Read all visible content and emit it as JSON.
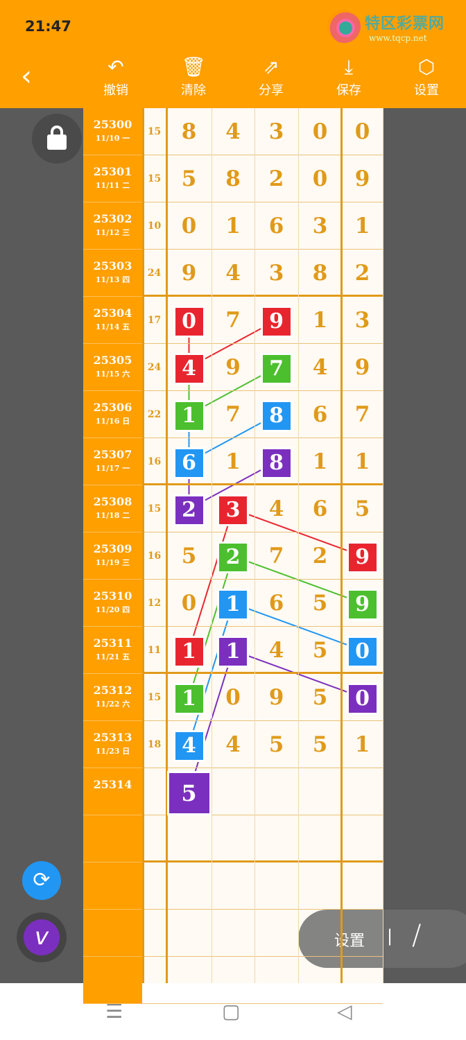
{
  "status": {
    "time": "21:47"
  },
  "watermark": {
    "name": "特区彩票网",
    "url": "www.tqcp.net"
  },
  "toolbar": [
    {
      "icon": "undo-icon",
      "glyph": "↶",
      "label": "撤销"
    },
    {
      "icon": "trash-icon",
      "glyph": "🗑",
      "label": "清除"
    },
    {
      "icon": "share-icon",
      "glyph": "⇗",
      "label": "分享"
    },
    {
      "icon": "download-icon",
      "glyph": "⤓",
      "label": "保存"
    },
    {
      "icon": "settings-icon",
      "glyph": "⬡",
      "label": "设置"
    }
  ],
  "colors": {
    "red": "#e8252f",
    "green": "#4cbf2e",
    "blue": "#2196f3",
    "purple": "#7b2fbe",
    "orange": "#ff9f00"
  },
  "rows": [
    {
      "period": "25300",
      "date": "11/10 一",
      "sum": "15",
      "digits": [
        8,
        4,
        3,
        0,
        0
      ]
    },
    {
      "period": "25301",
      "date": "11/11 二",
      "sum": "15",
      "digits": [
        5,
        8,
        2,
        0,
        9
      ]
    },
    {
      "period": "25302",
      "date": "11/12 三",
      "sum": "10",
      "digits": [
        0,
        1,
        6,
        3,
        1
      ]
    },
    {
      "period": "25303",
      "date": "11/13 四",
      "sum": "24",
      "digits": [
        9,
        4,
        3,
        8,
        2
      ]
    },
    {
      "period": "25304",
      "date": "11/14 五",
      "sum": "17",
      "digits": [
        0,
        7,
        9,
        1,
        3
      ]
    },
    {
      "period": "25305",
      "date": "11/15 六",
      "sum": "24",
      "digits": [
        4,
        9,
        7,
        4,
        9
      ]
    },
    {
      "period": "25306",
      "date": "11/16 日",
      "sum": "22",
      "digits": [
        1,
        7,
        8,
        6,
        7
      ]
    },
    {
      "period": "25307",
      "date": "11/17 一",
      "sum": "16",
      "digits": [
        6,
        1,
        8,
        1,
        1
      ]
    },
    {
      "period": "25308",
      "date": "11/18 二",
      "sum": "15",
      "digits": [
        2,
        3,
        4,
        6,
        5
      ]
    },
    {
      "period": "25309",
      "date": "11/19 三",
      "sum": "16",
      "digits": [
        5,
        2,
        7,
        2,
        9
      ]
    },
    {
      "period": "25310",
      "date": "11/20 四",
      "sum": "12",
      "digits": [
        0,
        1,
        6,
        5,
        9
      ]
    },
    {
      "period": "25311",
      "date": "11/21 五",
      "sum": "11",
      "digits": [
        1,
        1,
        4,
        5,
        0
      ]
    },
    {
      "period": "25312",
      "date": "11/22 六",
      "sum": "15",
      "digits": [
        1,
        0,
        9,
        5,
        0
      ]
    },
    {
      "period": "25313",
      "date": "11/23 日",
      "sum": "18",
      "digits": [
        4,
        4,
        5,
        5,
        1
      ]
    },
    {
      "period": "25314",
      "date": "",
      "sum": "",
      "digits": [
        5,
        null,
        null,
        null,
        null
      ]
    }
  ],
  "highlights": [
    {
      "row": 4,
      "col": 0,
      "color": "red"
    },
    {
      "row": 4,
      "col": 2,
      "color": "red"
    },
    {
      "row": 5,
      "col": 0,
      "color": "red"
    },
    {
      "row": 5,
      "col": 2,
      "color": "green"
    },
    {
      "row": 6,
      "col": 0,
      "color": "green"
    },
    {
      "row": 6,
      "col": 2,
      "color": "blue"
    },
    {
      "row": 7,
      "col": 0,
      "color": "blue"
    },
    {
      "row": 7,
      "col": 2,
      "color": "purple"
    },
    {
      "row": 8,
      "col": 0,
      "color": "purple"
    },
    {
      "row": 8,
      "col": 1,
      "color": "red"
    },
    {
      "row": 9,
      "col": 1,
      "color": "green"
    },
    {
      "row": 9,
      "col": 4,
      "color": "red"
    },
    {
      "row": 10,
      "col": 1,
      "color": "blue"
    },
    {
      "row": 10,
      "col": 4,
      "color": "green"
    },
    {
      "row": 11,
      "col": 0,
      "color": "red"
    },
    {
      "row": 11,
      "col": 1,
      "color": "purple"
    },
    {
      "row": 11,
      "col": 4,
      "color": "blue"
    },
    {
      "row": 12,
      "col": 0,
      "color": "green"
    },
    {
      "row": 12,
      "col": 4,
      "color": "purple"
    },
    {
      "row": 13,
      "col": 0,
      "color": "blue"
    },
    {
      "row": 14,
      "col": 0,
      "color": "purple"
    }
  ],
  "links": [
    {
      "from": [
        4,
        0
      ],
      "to": [
        5,
        0
      ],
      "color": "red"
    },
    {
      "from": [
        4,
        2
      ],
      "to": [
        5,
        0
      ],
      "color": "red"
    },
    {
      "from": [
        5,
        0
      ],
      "to": [
        6,
        0
      ],
      "color": "green"
    },
    {
      "from": [
        5,
        2
      ],
      "to": [
        6,
        0
      ],
      "color": "green"
    },
    {
      "from": [
        6,
        0
      ],
      "to": [
        7,
        0
      ],
      "color": "blue"
    },
    {
      "from": [
        6,
        2
      ],
      "to": [
        7,
        0
      ],
      "color": "blue"
    },
    {
      "from": [
        7,
        0
      ],
      "to": [
        8,
        0
      ],
      "color": "purple"
    },
    {
      "from": [
        7,
        2
      ],
      "to": [
        8,
        0
      ],
      "color": "purple"
    },
    {
      "from": [
        8,
        1
      ],
      "to": [
        9,
        4
      ],
      "color": "red"
    },
    {
      "from": [
        8,
        1
      ],
      "to": [
        11,
        0
      ],
      "color": "red"
    },
    {
      "from": [
        9,
        1
      ],
      "to": [
        10,
        4
      ],
      "color": "green"
    },
    {
      "from": [
        9,
        1
      ],
      "to": [
        12,
        0
      ],
      "color": "green"
    },
    {
      "from": [
        10,
        1
      ],
      "to": [
        11,
        4
      ],
      "color": "blue"
    },
    {
      "from": [
        10,
        1
      ],
      "to": [
        13,
        0
      ],
      "color": "blue"
    },
    {
      "from": [
        11,
        1
      ],
      "to": [
        12,
        4
      ],
      "color": "purple"
    },
    {
      "from": [
        11,
        1
      ],
      "to": [
        14,
        0
      ],
      "color": "purple"
    }
  ],
  "settings_pill": {
    "label": "设置",
    "divider": "|",
    "pen_glyph": "/"
  },
  "nav": {
    "menu": "☰",
    "home": "▢",
    "back": "◁"
  }
}
